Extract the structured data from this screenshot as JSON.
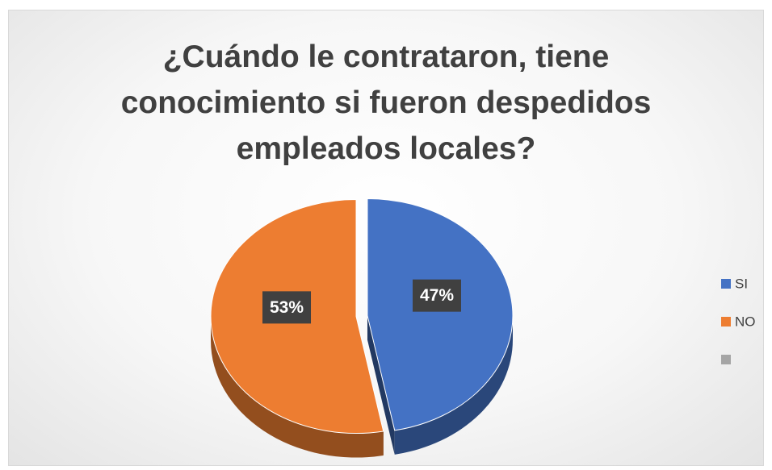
{
  "chart_data": {
    "type": "pie",
    "title": "¿Cuándo le contrataron, tiene conocimiento si fueron despedidos empleados locales?",
    "categories": [
      "SI",
      "NO",
      null
    ],
    "values": [
      47,
      53,
      0
    ],
    "value_labels": [
      "47%",
      "53%",
      null
    ],
    "colors": [
      "#4472c4",
      "#ed7d31",
      "#a5a5a5"
    ],
    "legend": "right"
  }
}
